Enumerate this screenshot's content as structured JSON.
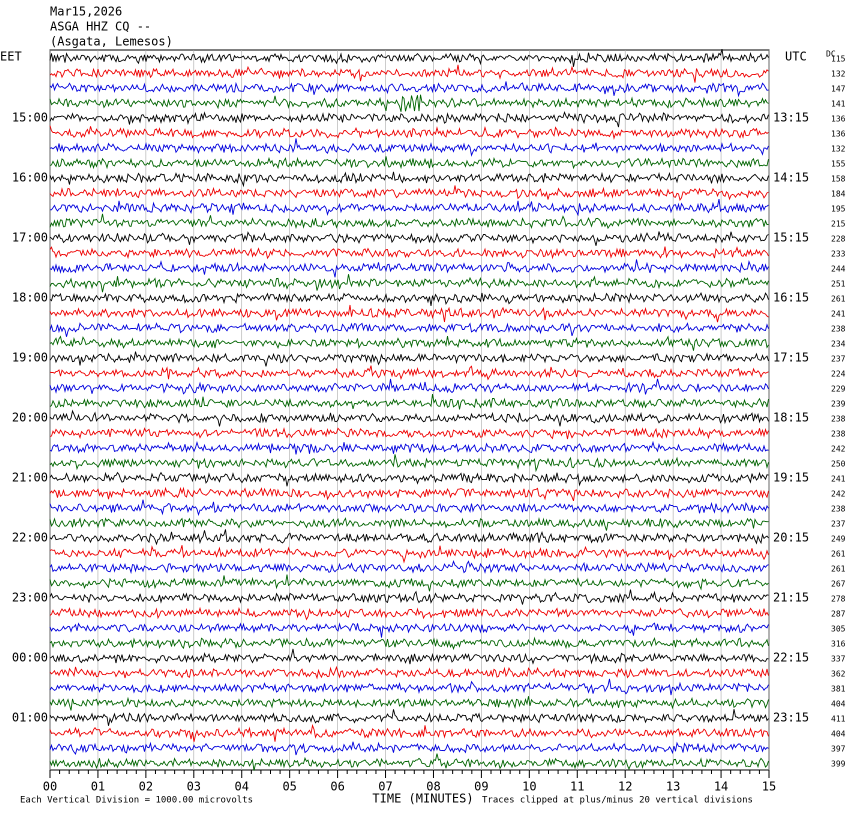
{
  "header": {
    "date": "Mar15,2026",
    "station": "ASGA HHZ CQ --",
    "location": "(Asgata, Lemesos)"
  },
  "left_axis": {
    "title": "EET",
    "labels": [
      "15:00",
      "16:00",
      "17:00",
      "18:00",
      "19:00",
      "20:00",
      "21:00",
      "22:00",
      "23:00",
      "00:00",
      "01:00"
    ]
  },
  "right_axis": {
    "title": "UTC",
    "labels": [
      "13:15",
      "14:15",
      "15:15",
      "16:15",
      "17:15",
      "18:15",
      "19:15",
      "20:15",
      "21:15",
      "22:15",
      "23:15"
    ]
  },
  "dc": {
    "title": "DC",
    "values": [
      115,
      132,
      147,
      141,
      136,
      136,
      132,
      155,
      158,
      184,
      195,
      215,
      228,
      233,
      244,
      251,
      261,
      241,
      238,
      234,
      237,
      224,
      229,
      239,
      238,
      238,
      242,
      250,
      241,
      242,
      238,
      237,
      249,
      261,
      261,
      267,
      278,
      287,
      305,
      316,
      337,
      362,
      381,
      404,
      411,
      404,
      397,
      399
    ]
  },
  "time_axis": {
    "title": "TIME (MINUTES)",
    "ticks": [
      "00",
      "01",
      "02",
      "03",
      "04",
      "05",
      "06",
      "07",
      "08",
      "09",
      "10",
      "11",
      "12",
      "13",
      "14",
      "15"
    ]
  },
  "footer": {
    "scale": "Each Vertical Division = 1000.00 microvolts",
    "clip": "Traces clipped at plus/minus 20 vertical divisions"
  }
}
